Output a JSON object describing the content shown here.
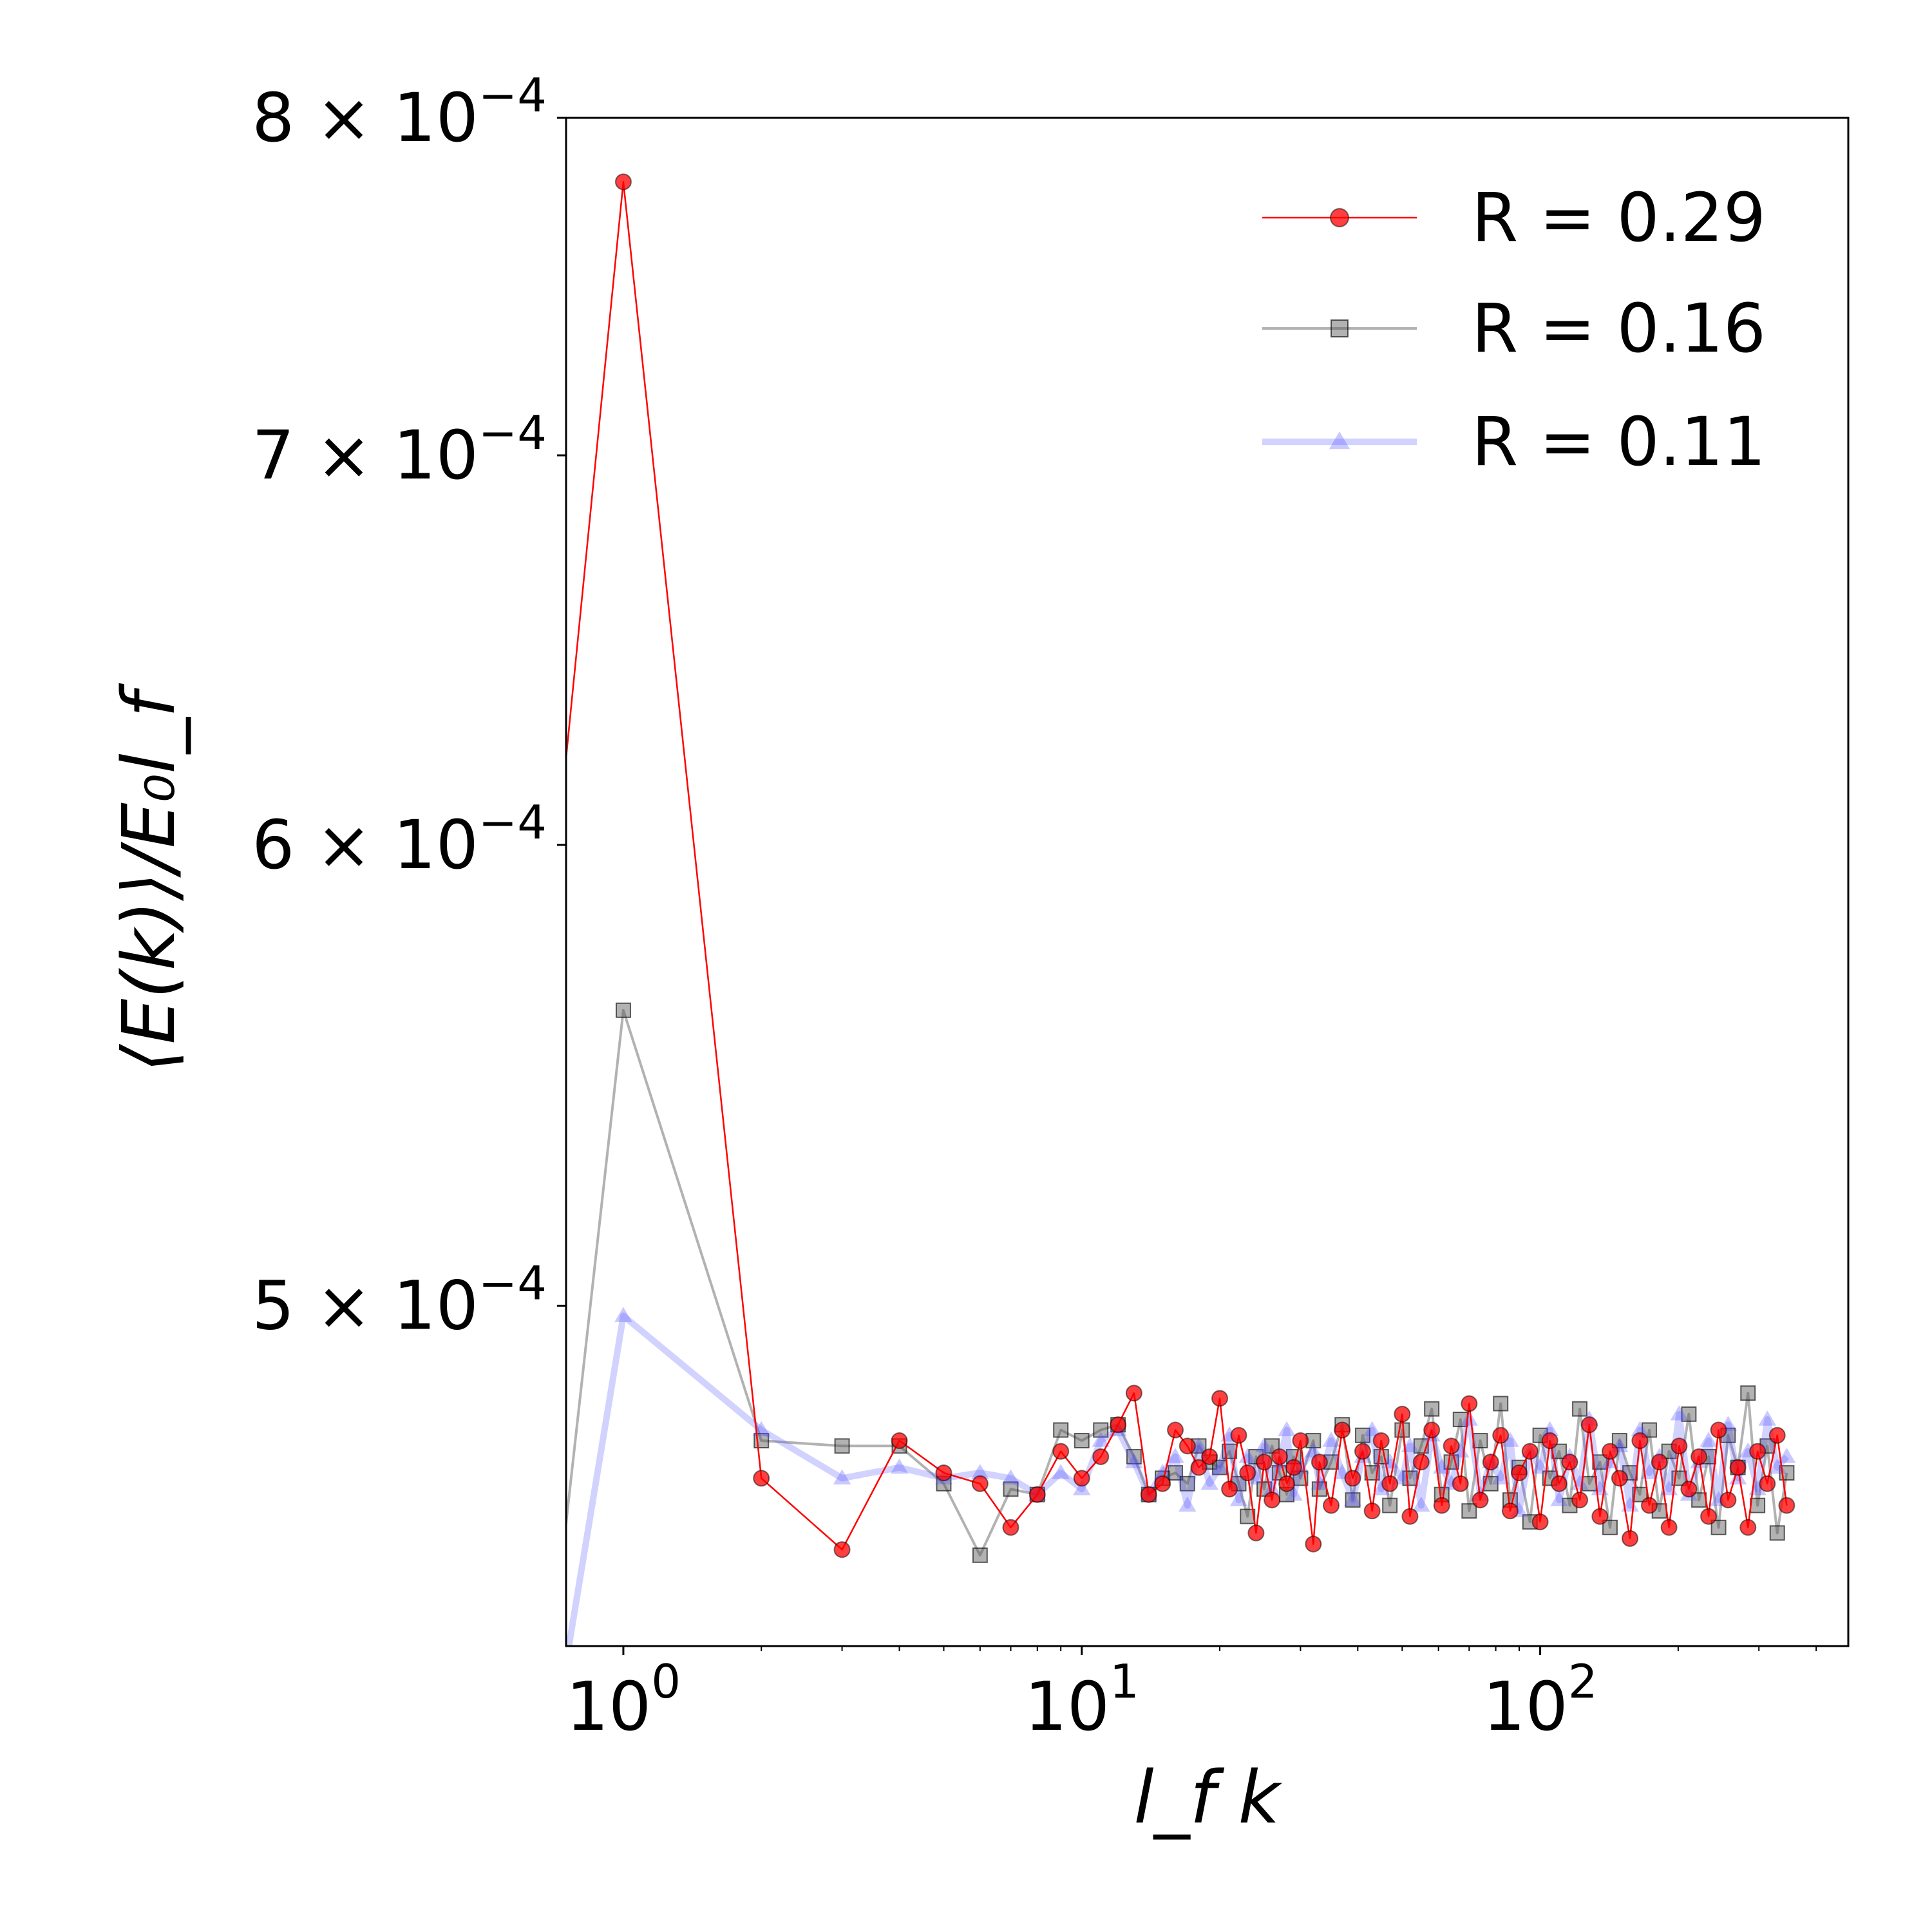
{
  "chart_data": {
    "type": "line",
    "title": "",
    "xlabel": "l_f k",
    "ylabel": "⟨E(k)⟩/E₀l_f",
    "xscale": "log",
    "yscale": "log",
    "xlim": [
      0.75,
      470
    ],
    "ylim": [
      0.000437,
      0.0008
    ],
    "grid": false,
    "legend_position": "top-right",
    "x_ticks": [
      {
        "value": 1,
        "base": "10",
        "exp": "0"
      },
      {
        "value": 10,
        "base": "10",
        "exp": "1"
      },
      {
        "value": 100,
        "base": "10",
        "exp": "2"
      }
    ],
    "y_ticks": [
      {
        "value": 0.0005,
        "mant": "5",
        "exp": "−4"
      },
      {
        "value": 0.0006,
        "mant": "6",
        "exp": "−4"
      },
      {
        "value": 0.0007,
        "mant": "7",
        "exp": "−4"
      },
      {
        "value": 0.0008,
        "mant": "8",
        "exp": "−4"
      }
    ],
    "series": [
      {
        "name": "R = 0.29",
        "color": "#ff0000",
        "marker": "circle",
        "line_opacity": 1.0,
        "x": [
          0.7,
          1,
          2,
          3,
          4,
          5,
          6,
          7,
          8,
          9,
          10,
          11,
          12,
          13,
          14,
          15,
          16,
          17,
          18,
          19,
          20,
          21,
          22,
          23,
          24,
          25,
          26,
          27,
          28,
          29,
          30,
          32,
          33,
          35,
          37,
          39,
          41,
          43,
          45,
          47,
          50,
          52,
          55,
          58,
          61,
          64,
          67,
          70,
          74,
          78,
          82,
          86,
          90,
          95,
          100,
          105,
          110,
          116,
          122,
          128,
          135,
          142,
          149,
          157,
          165,
          173,
          182,
          191,
          201,
          211,
          222,
          233,
          245,
          257,
          270,
          284,
          298,
          313,
          329,
          345
        ],
        "y": [
          0.000588,
          0.00078,
          0.000467,
          0.000454,
          0.000474,
          0.000468,
          0.000466,
          0.000458,
          0.000464,
          0.000472,
          0.000467,
          0.000471,
          0.000477,
          0.000483,
          0.000464,
          0.000466,
          0.000476,
          0.000473,
          0.000469,
          0.000471,
          0.000482,
          0.000465,
          0.000475,
          0.000468,
          0.000457,
          0.00047,
          0.000463,
          0.000471,
          0.000466,
          0.000469,
          0.000474,
          0.000455,
          0.00047,
          0.000462,
          0.000476,
          0.000467,
          0.000472,
          0.000461,
          0.000474,
          0.000466,
          0.000479,
          0.00046,
          0.00047,
          0.000476,
          0.000462,
          0.000473,
          0.000466,
          0.000481,
          0.000463,
          0.00047,
          0.000475,
          0.000461,
          0.000468,
          0.000472,
          0.000459,
          0.000474,
          0.000466,
          0.00047,
          0.000463,
          0.000477,
          0.00046,
          0.000472,
          0.000467,
          0.000456,
          0.000474,
          0.000462,
          0.00047,
          0.000458,
          0.000473,
          0.000465,
          0.000471,
          0.00046,
          0.000476,
          0.000463,
          0.000469,
          0.000458,
          0.000472,
          0.000466,
          0.000475,
          0.000462
        ]
      },
      {
        "name": "R = 0.16",
        "color": "#555555",
        "marker": "square",
        "line_opacity": 0.45,
        "x": [
          0.7,
          1,
          2,
          3,
          4,
          5,
          6,
          7,
          8,
          9,
          10,
          11,
          12,
          13,
          14,
          15,
          16,
          17,
          18,
          19,
          20,
          21,
          22,
          23,
          24,
          25,
          26,
          27,
          28,
          29,
          30,
          32,
          33,
          35,
          37,
          39,
          41,
          43,
          45,
          47,
          50,
          52,
          55,
          58,
          61,
          64,
          67,
          70,
          74,
          78,
          82,
          86,
          90,
          95,
          100,
          105,
          110,
          116,
          122,
          128,
          135,
          142,
          149,
          157,
          165,
          173,
          182,
          191,
          201,
          211,
          222,
          233,
          245,
          257,
          270,
          284,
          298,
          313,
          329,
          345
        ],
        "y": [
          0.000437,
          0.000562,
          0.000474,
          0.000473,
          0.000473,
          0.000466,
          0.000453,
          0.000465,
          0.000464,
          0.000476,
          0.000474,
          0.000476,
          0.000477,
          0.000471,
          0.000464,
          0.000467,
          0.000468,
          0.000466,
          0.000473,
          0.00047,
          0.000469,
          0.000472,
          0.000466,
          0.00046,
          0.000471,
          0.000465,
          0.000473,
          0.000468,
          0.000464,
          0.000471,
          0.000467,
          0.000474,
          0.000465,
          0.00047,
          0.000477,
          0.000463,
          0.000475,
          0.000468,
          0.000471,
          0.000462,
          0.000476,
          0.000467,
          0.000473,
          0.00048,
          0.000464,
          0.00047,
          0.000478,
          0.000461,
          0.000474,
          0.000466,
          0.000481,
          0.000463,
          0.000469,
          0.000459,
          0.000475,
          0.000467,
          0.000472,
          0.000462,
          0.00048,
          0.000466,
          0.00047,
          0.000458,
          0.000474,
          0.000468,
          0.000464,
          0.000476,
          0.000461,
          0.000472,
          0.000467,
          0.000479,
          0.000463,
          0.000471,
          0.000458,
          0.000475,
          0.000469,
          0.000483,
          0.000462,
          0.000473,
          0.000457,
          0.000468
        ]
      },
      {
        "name": "R = 0.11",
        "color": "#4d4dff",
        "marker": "triangle",
        "line_opacity": 0.25,
        "x": [
          0.7,
          1,
          2,
          3,
          4,
          5,
          6,
          7,
          8,
          9,
          10,
          11,
          12,
          13,
          14,
          15,
          16,
          17,
          18,
          19,
          20,
          21,
          22,
          23,
          24,
          25,
          26,
          27,
          28,
          29,
          30,
          32,
          33,
          35,
          37,
          39,
          41,
          43,
          45,
          47,
          50,
          52,
          55,
          58,
          61,
          64,
          67,
          70,
          74,
          78,
          82,
          86,
          90,
          95,
          100,
          105,
          110,
          116,
          122,
          128,
          135,
          142,
          149,
          157,
          165,
          173,
          182,
          191,
          201,
          211,
          222,
          233,
          245,
          257,
          270,
          284,
          298,
          313,
          329,
          345
        ],
        "y": [
          0.00042,
          0.000498,
          0.000476,
          0.000467,
          0.000469,
          0.000467,
          0.000468,
          0.000467,
          0.000464,
          0.000468,
          0.000465,
          0.000474,
          0.000476,
          0.00047,
          0.000464,
          0.000468,
          0.000471,
          0.000462,
          0.000473,
          0.000466,
          0.000469,
          0.000475,
          0.000463,
          0.000471,
          0.000467,
          0.000473,
          0.000465,
          0.00047,
          0.000476,
          0.000464,
          0.000469,
          0.000472,
          0.000466,
          0.000474,
          0.000468,
          0.000463,
          0.000471,
          0.000476,
          0.000465,
          0.00047,
          0.000467,
          0.000473,
          0.000462,
          0.000475,
          0.000469,
          0.000466,
          0.000472,
          0.000478,
          0.000464,
          0.00047,
          0.000467,
          0.000474,
          0.000461,
          0.000472,
          0.000469,
          0.000476,
          0.000463,
          0.000471,
          0.000466,
          0.000478,
          0.000465,
          0.00047,
          0.000473,
          0.000462,
          0.000476,
          0.000468,
          0.000471,
          0.000465,
          0.000479,
          0.000464,
          0.00047,
          0.000474,
          0.000463,
          0.000477,
          0.000467,
          0.000472,
          0.000465,
          0.000478,
          0.000469,
          0.000471
        ]
      }
    ]
  }
}
